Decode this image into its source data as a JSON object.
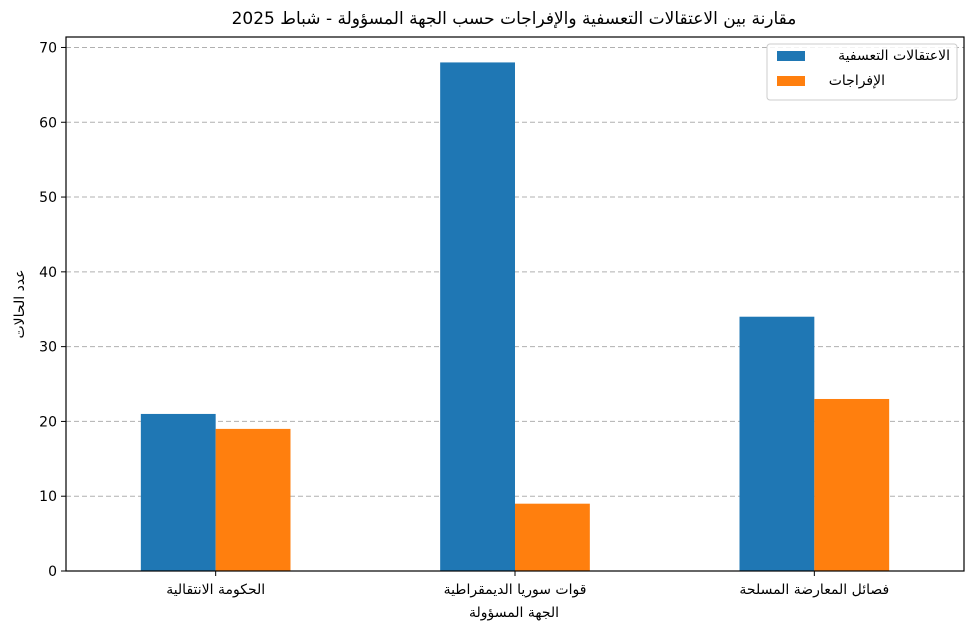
{
  "chart_data": {
    "type": "bar",
    "title": "مقارنة بين الاعتقالات التعسفية والإفراجات حسب الجهة المسؤولة - شباط 2025",
    "xlabel": "الجهة المسؤولة",
    "ylabel": "عدد الحالات",
    "categories": [
      "الحكومة الانتقالية",
      "قوات سوريا الديمقراطية",
      "فصائل المعارضة المسلحة"
    ],
    "series": [
      {
        "name": "الاعتقالات التعسفية",
        "color": "#1f77b4",
        "values": [
          21,
          68,
          34
        ]
      },
      {
        "name": "الإفراجات",
        "color": "#ff7f0e",
        "values": [
          19,
          9,
          23
        ]
      }
    ],
    "ylim": [
      0,
      71.4
    ],
    "yticks": [
      0,
      10,
      20,
      30,
      40,
      50,
      60,
      70
    ],
    "grid": "y-dashed",
    "legend_position": "top-right"
  }
}
